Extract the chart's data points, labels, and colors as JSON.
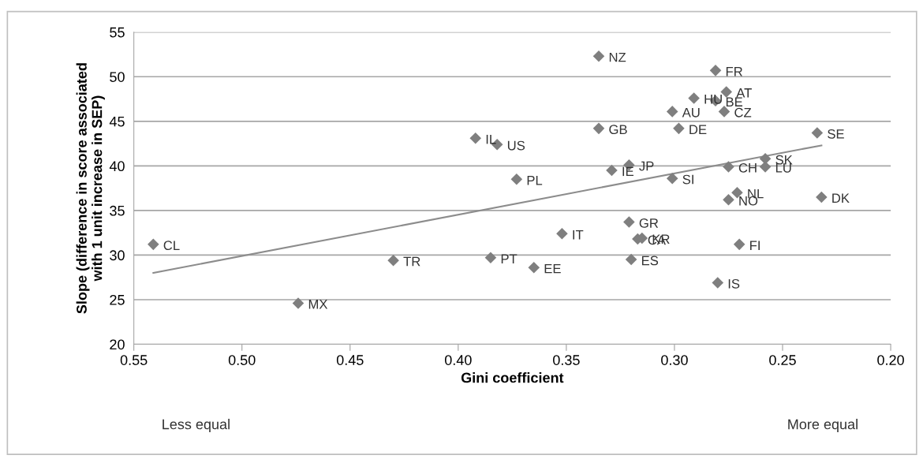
{
  "chart_data": {
    "type": "scatter",
    "xlabel": "Gini coefficient",
    "ylabel": "Slope (difference in score associated\nwith 1 unit increase in SEP)",
    "series": [
      {
        "color": "#7f7f7f",
        "marker": "diamond",
        "x": [
          0.541,
          0.474,
          0.43,
          0.392,
          0.382,
          0.373,
          0.385,
          0.365,
          0.352,
          0.335,
          0.335,
          0.329,
          0.321,
          0.321,
          0.317,
          0.315,
          0.32,
          0.301,
          0.301,
          0.298,
          0.291,
          0.28,
          0.281,
          0.281,
          0.276,
          0.277,
          0.275,
          0.275,
          0.271,
          0.27,
          0.258,
          0.258,
          0.234,
          0.232
        ],
        "values": [
          31.2,
          24.6,
          29.4,
          43.1,
          42.4,
          38.5,
          29.7,
          28.6,
          32.4,
          52.3,
          44.2,
          39.5,
          40.1,
          33.7,
          31.8,
          31.9,
          29.5,
          38.6,
          46.1,
          44.2,
          47.6,
          26.9,
          50.7,
          47.3,
          48.3,
          46.1,
          39.9,
          36.2,
          37.0,
          31.2,
          40.8,
          39.9,
          43.7,
          36.5
        ]
      },
      {
        "type": "line",
        "color": "#8c8c8c",
        "x": [
          0.541,
          0.232
        ],
        "values": [
          28.0,
          42.3
        ]
      }
    ],
    "annotations": [
      {
        "text": "CL",
        "x": 0.541,
        "y": 31.2
      },
      {
        "text": "MX",
        "x": 0.474,
        "y": 24.6
      },
      {
        "text": "TR",
        "x": 0.43,
        "y": 29.4
      },
      {
        "text": "IL",
        "x": 0.392,
        "y": 43.1
      },
      {
        "text": "US",
        "x": 0.382,
        "y": 42.4
      },
      {
        "text": "PL",
        "x": 0.373,
        "y": 38.5
      },
      {
        "text": "PT",
        "x": 0.385,
        "y": 29.7
      },
      {
        "text": "EE",
        "x": 0.365,
        "y": 28.6
      },
      {
        "text": "IT",
        "x": 0.352,
        "y": 32.4
      },
      {
        "text": "NZ",
        "x": 0.335,
        "y": 52.3
      },
      {
        "text": "GB",
        "x": 0.335,
        "y": 44.2
      },
      {
        "text": "IE",
        "x": 0.329,
        "y": 39.5
      },
      {
        "text": "JP",
        "x": 0.321,
        "y": 40.1
      },
      {
        "text": "GR",
        "x": 0.321,
        "y": 33.7
      },
      {
        "text": "CA",
        "x": 0.317,
        "y": 31.8
      },
      {
        "text": "KR",
        "x": 0.315,
        "y": 31.9
      },
      {
        "text": "ES",
        "x": 0.32,
        "y": 29.5
      },
      {
        "text": "SI",
        "x": 0.301,
        "y": 38.6
      },
      {
        "text": "AU",
        "x": 0.301,
        "y": 46.1
      },
      {
        "text": "DE",
        "x": 0.298,
        "y": 44.2
      },
      {
        "text": "HU",
        "x": 0.291,
        "y": 47.6
      },
      {
        "text": "IS",
        "x": 0.28,
        "y": 26.9
      },
      {
        "text": "FR",
        "x": 0.281,
        "y": 50.7
      },
      {
        "text": "BE",
        "x": 0.281,
        "y": 47.3
      },
      {
        "text": "AT",
        "x": 0.276,
        "y": 48.3
      },
      {
        "text": "CZ",
        "x": 0.277,
        "y": 46.1
      },
      {
        "text": "CH",
        "x": 0.275,
        "y": 39.9
      },
      {
        "text": "NO",
        "x": 0.275,
        "y": 36.2
      },
      {
        "text": "NL",
        "x": 0.271,
        "y": 37.0
      },
      {
        "text": "FI",
        "x": 0.27,
        "y": 31.2
      },
      {
        "text": "SK",
        "x": 0.258,
        "y": 40.8
      },
      {
        "text": "LU",
        "x": 0.258,
        "y": 39.9
      },
      {
        "text": "SE",
        "x": 0.234,
        "y": 43.7
      },
      {
        "text": "DK",
        "x": 0.232,
        "y": 36.5
      },
      "Less equal",
      "More equal"
    ],
    "xlim": [
      0.55,
      0.2
    ],
    "xticks": [
      0.55,
      {
        "value": 0.5,
        "label": "0.50"
      },
      0.45,
      {
        "value": 0.4,
        "label": "0.40"
      },
      0.35,
      {
        "value": 0.3,
        "label": "0.30"
      },
      0.25,
      {
        "value": 0.2,
        "label": "0.20"
      }
    ],
    "ylim": [
      20,
      55
    ],
    "yticks": [
      20,
      25,
      30,
      35,
      40,
      45,
      50,
      55
    ],
    "grid": "y"
  }
}
